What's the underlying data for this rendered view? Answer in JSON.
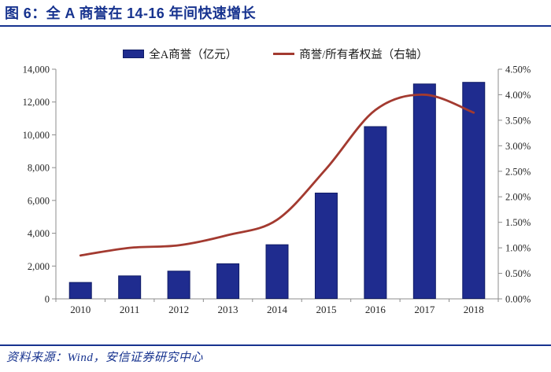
{
  "title": "图 6：全 A 商誉在 14-16 年间快速增长",
  "legend": {
    "items": [
      {
        "label": "全A商誉（亿元）",
        "marker": "bar-swatch"
      },
      {
        "label": "商誉/所有者权益（右轴）",
        "marker": "line-swatch"
      }
    ]
  },
  "footer": {
    "source": "资料来源：Wind，安信证券研究中心"
  },
  "colors": {
    "accent_blue": "#17338F",
    "bar_fill": "#1F2C8F",
    "bar_border": "#101C66",
    "line_red": "#A33A30",
    "axis_gray": "#8C8C8C",
    "tick_text": "#262626"
  },
  "chart_data": {
    "type": "bar",
    "subtype": "bar+line combo, line on secondary axis",
    "title": "全 A 商誉在 14-16 年间快速增长",
    "categories": [
      "2010",
      "2011",
      "2012",
      "2013",
      "2014",
      "2015",
      "2016",
      "2017",
      "2018"
    ],
    "series": [
      {
        "name": "全A商誉（亿元）",
        "type": "bar",
        "axis": "left",
        "values": [
          1000,
          1400,
          1690,
          2140,
          3300,
          6450,
          10500,
          13100,
          13200
        ]
      },
      {
        "name": "商誉/所有者权益（右轴）",
        "type": "line",
        "axis": "right",
        "values": [
          0.85,
          1.0,
          1.05,
          1.25,
          1.55,
          2.55,
          3.7,
          4.0,
          3.65
        ]
      }
    ],
    "left_axis": {
      "min": 0,
      "max": 14000,
      "tick_labels": [
        "0",
        "2,000",
        "4,000",
        "6,000",
        "8,000",
        "10,000",
        "12,000",
        "14,000"
      ]
    },
    "right_axis": {
      "min": 0,
      "max": 4.5,
      "tick_labels": [
        "0.00%",
        "0.50%",
        "1.00%",
        "1.50%",
        "2.00%",
        "2.50%",
        "3.00%",
        "3.50%",
        "4.00%",
        "4.50%"
      ]
    },
    "grid": false,
    "legend_position": "top"
  }
}
